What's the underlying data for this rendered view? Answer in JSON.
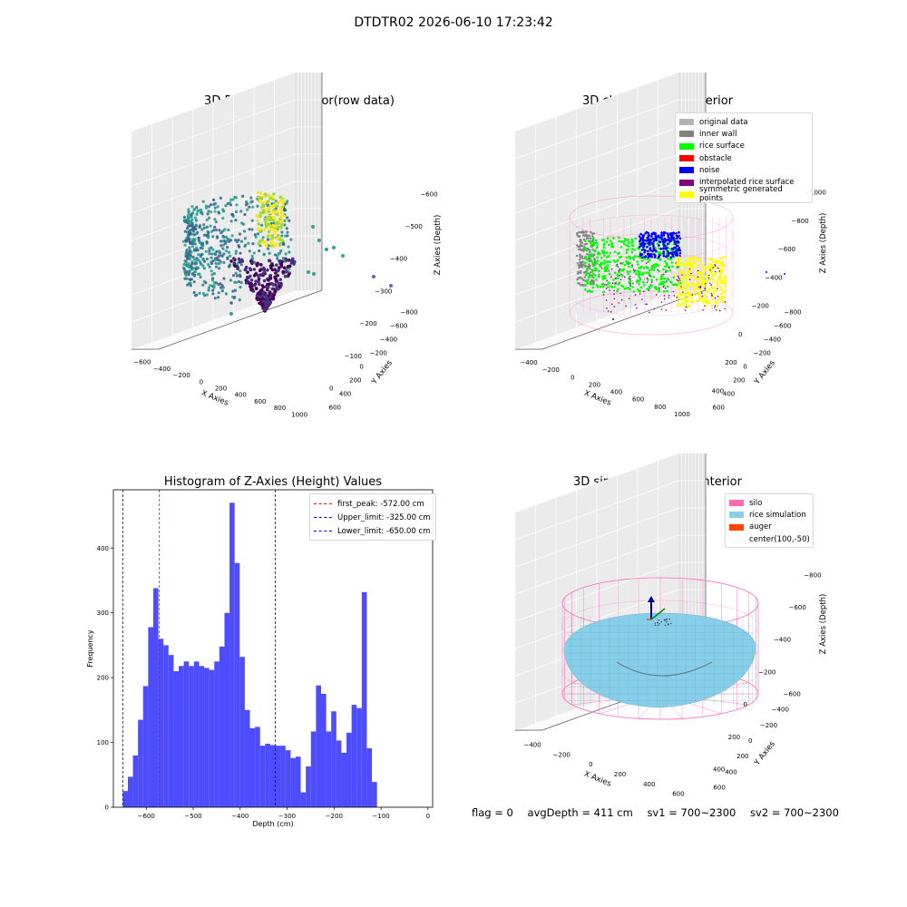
{
  "suptitle": "DTDTR02 2026-06-10 17:23:42",
  "status": {
    "flag": "flag = 0",
    "avg_depth": "avgDepth = 411 cm",
    "sv1": "sv1 = 700~2300",
    "sv2": "sv2 = 700~2300"
  },
  "colors": {
    "original_data": "#b3b3b3",
    "inner_wall": "#808080",
    "rice_surface": "#00ff00",
    "obstacle": "#ff0000",
    "noise": "#0000ff",
    "interpolated_rice_surface": "#800080",
    "symmetric_generated_points": "#ffff00",
    "silo": "#ff69b4",
    "rice_simulation": "#87ceeb",
    "auger": "#ff4500",
    "histogram_bars": "#4d4dff"
  },
  "chart_data": [
    {
      "type": "scatter",
      "projection": "3d",
      "title": "3D Plot of Silo Interior(row data)",
      "xlabel": "X Axies",
      "ylabel": "Y Axies",
      "zlabel": "Z Axies (Depth)",
      "x_ticks": [
        "−600",
        "−400",
        "−200",
        "0",
        "200",
        "400",
        "600",
        "800",
        "1000"
      ],
      "y_ticks": [
        "600",
        "400",
        "200",
        "0",
        "−200",
        "−400",
        "−600",
        "−800"
      ],
      "z_ticks": [
        "0",
        "−100",
        "−200",
        "−300",
        "−400",
        "−500",
        "−600"
      ],
      "colormap": "viridis"
    },
    {
      "type": "scatter",
      "projection": "3d",
      "title": "3D classify of Silo Interior",
      "xlabel": "X Axies",
      "ylabel": "Y Axies",
      "zlabel": "Z Axies (Depth)",
      "x_ticks": [
        "−400",
        "−200",
        "0",
        "200",
        "400",
        "600",
        "800",
        "1000"
      ],
      "y_ticks": [
        "600",
        "400",
        "200",
        "0",
        "−200",
        "−400",
        "−600",
        "−800"
      ],
      "z_ticks": [
        "400",
        "200",
        "0",
        "−200",
        "−400",
        "−600",
        "−800",
        "−1000"
      ],
      "legend_position": "top-right",
      "legend": [
        {
          "label": "original data",
          "color": "#b3b3b3"
        },
        {
          "label": "inner wall",
          "color": "#808080"
        },
        {
          "label": "rice surface",
          "color": "#00ff00"
        },
        {
          "label": "obstacle",
          "color": "#ff0000"
        },
        {
          "label": "noise",
          "color": "#0000ff"
        },
        {
          "label": "interpolated rice surface",
          "color": "#800080"
        },
        {
          "label": "symmetric generated points",
          "color": "#ffff00"
        }
      ]
    },
    {
      "type": "bar",
      "subtype": "histogram",
      "title": "Histogram of Z-Axies (Height) Values",
      "xlabel": "Depth (cm)",
      "ylabel": "Frequency",
      "xlim": [
        -670,
        10
      ],
      "ylim": [
        0,
        490
      ],
      "x_ticks": [
        -600,
        -500,
        -400,
        -300,
        -200,
        -100,
        0
      ],
      "x_tick_labels": [
        "−600",
        "−500",
        "−400",
        "−300",
        "−200",
        "−100",
        "0"
      ],
      "y_ticks": [
        0,
        100,
        200,
        300,
        400
      ],
      "y_tick_labels": [
        "0",
        "100",
        "200",
        "300",
        "400"
      ],
      "bin_start": -650,
      "bin_width": 10.83,
      "counts": [
        25,
        47,
        80,
        135,
        187,
        278,
        338,
        260,
        250,
        235,
        210,
        218,
        225,
        218,
        225,
        218,
        215,
        212,
        225,
        248,
        300,
        470,
        377,
        232,
        150,
        122,
        124,
        95,
        98,
        96,
        95,
        95,
        88,
        76,
        78,
        23,
        63,
        117,
        188,
        175,
        117,
        148,
        103,
        84,
        115,
        158,
        153,
        332,
        91,
        39
      ],
      "bar_color": "#4d4dff",
      "legend_position": "top-right",
      "legend": [
        {
          "label": "first_peak: -572.00 cm",
          "color": "#ff0000"
        },
        {
          "label": "Upper_limit: -325.00 cm",
          "color": "#0000cc"
        },
        {
          "label": "Lower_limit: -650.00 cm",
          "color": "#0000cc"
        }
      ],
      "vlines": [
        {
          "x": -572,
          "color": "#ff0000"
        },
        {
          "x": -325,
          "color": "#0000cc"
        },
        {
          "x": -650,
          "color": "#0000cc"
        }
      ]
    },
    {
      "type": "scatter",
      "projection": "3d",
      "title": "3D simulation of Silo Interior",
      "xlabel": "X Axies",
      "ylabel": "Y Axies",
      "zlabel": "Z Axies (Depth)",
      "x_ticks": [
        "−400",
        "−200",
        "0",
        "200",
        "400",
        "600"
      ],
      "y_ticks": [
        "600",
        "400",
        "200",
        "0",
        "−200",
        "−400",
        "−600"
      ],
      "z_ticks": [
        "400",
        "200",
        "0",
        "−200",
        "−400",
        "−600",
        "−800"
      ],
      "legend_position": "top-right",
      "legend": [
        {
          "label": "silo",
          "color": "#ff69b4"
        },
        {
          "label": "rice simulation",
          "color": "#87ceeb"
        },
        {
          "label": "auger",
          "color": "#ff4500"
        },
        {
          "label": "center(100,-50)",
          "color": ""
        }
      ]
    }
  ]
}
